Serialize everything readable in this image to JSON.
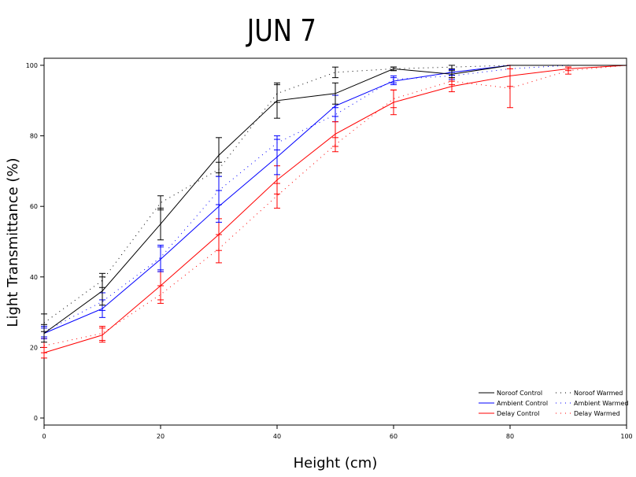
{
  "chart_data": {
    "type": "line",
    "title": "JUN  7",
    "xlabel": "Height (cm)",
    "ylabel": "Light Transmittance (%)",
    "xlim": [
      0,
      100
    ],
    "ylim": [
      -2,
      102
    ],
    "xticks": [
      0,
      20,
      40,
      60,
      80,
      100
    ],
    "yticks": [
      0,
      20,
      40,
      60,
      80,
      100
    ],
    "grid": false,
    "legend_position": "bottom-right",
    "series": [
      {
        "name": "Noroof Control",
        "color": "#000000",
        "style": "solid",
        "x": [
          0,
          10,
          20,
          30,
          40,
          50,
          60,
          70,
          80,
          90,
          100
        ],
        "y": [
          24,
          36,
          55,
          74.5,
          90,
          92,
          99,
          97.5,
          100,
          100,
          100
        ],
        "err": [
          2.5,
          4,
          4.5,
          5,
          5,
          3,
          0.5,
          1,
          0,
          0,
          0
        ]
      },
      {
        "name": "Ambient Control",
        "color": "#0000ff",
        "style": "solid",
        "x": [
          0,
          10,
          20,
          30,
          40,
          50,
          60,
          70,
          80,
          90,
          100
        ],
        "y": [
          24,
          31,
          45,
          60,
          74,
          88.5,
          95.5,
          98,
          100,
          100,
          100
        ],
        "err": [
          1.5,
          2.5,
          3.5,
          4.5,
          5,
          3,
          1,
          0.8,
          0,
          0,
          0
        ]
      },
      {
        "name": "Delay Control",
        "color": "#ff0000",
        "style": "solid",
        "x": [
          0,
          10,
          20,
          30,
          40,
          50,
          60,
          70,
          80,
          90,
          100
        ],
        "y": [
          18.5,
          23.5,
          37.5,
          52,
          67.5,
          80.5,
          89.5,
          94,
          97,
          99,
          100
        ],
        "err": [
          1.5,
          2,
          4,
          4.5,
          4,
          3.5,
          3.5,
          1.5,
          3,
          0.5,
          0
        ]
      },
      {
        "name": "Noroof Warmed",
        "color": "#000000",
        "style": "dotted",
        "x": [
          0,
          10,
          20,
          30,
          40,
          50,
          60,
          70,
          80,
          90,
          100
        ],
        "y": [
          27,
          39,
          61,
          70.5,
          92,
          98,
          99,
          99.5,
          100,
          100,
          100
        ],
        "err": [
          2.5,
          2,
          2,
          2,
          2.5,
          1.5,
          0.5,
          0.5,
          0,
          0,
          0
        ]
      },
      {
        "name": "Ambient Warmed",
        "color": "#0000ff",
        "style": "dotted",
        "x": [
          0,
          10,
          20,
          30,
          40,
          50,
          60,
          70,
          80,
          90,
          100
        ],
        "y": [
          24.5,
          33,
          45.5,
          64.5,
          78,
          86,
          96,
          97,
          99,
          100,
          100
        ],
        "err": [
          1.5,
          2.5,
          3.5,
          4,
          2,
          2,
          1,
          1,
          0,
          0,
          0
        ]
      },
      {
        "name": "Delay Warmed",
        "color": "#ff0000",
        "style": "dotted",
        "x": [
          0,
          10,
          20,
          30,
          40,
          50,
          60,
          70,
          80,
          90,
          100
        ],
        "y": [
          20.5,
          24,
          35,
          48,
          63,
          77.5,
          90.5,
          95.5,
          93.5,
          98.5,
          100
        ],
        "err": [
          2,
          2,
          2.5,
          4,
          3.5,
          2,
          2.5,
          1,
          5.5,
          1,
          0
        ]
      }
    ]
  }
}
